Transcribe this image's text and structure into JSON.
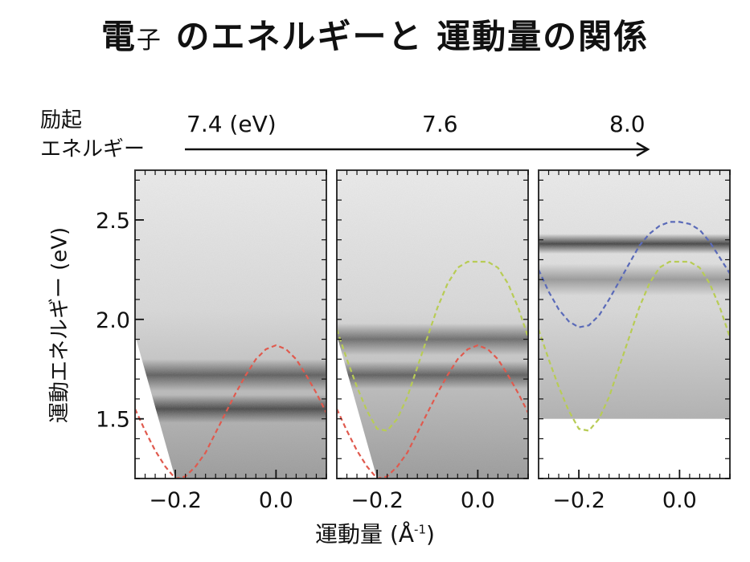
{
  "title": {
    "main": "電",
    "small": "子",
    "rest": " のエネルギーと 運動量の関係"
  },
  "excitation": {
    "label_line1": "励起",
    "label_line2": "エネルギー",
    "values": [
      "7.4 (eV)",
      "7.6",
      "8.0"
    ]
  },
  "ylabel": "運動エネルギー (eV)",
  "xlabel": {
    "text": "運動量 (Å",
    "sup": "-1",
    "close": ")"
  },
  "colors": {
    "red": "#e05a4e",
    "green": "#b8cc55",
    "blue": "#5a6ab8",
    "frame": "#333333"
  },
  "chart_data": [
    {
      "type": "heatmap",
      "panel": "7.4 (eV)",
      "xlim": [
        -0.28,
        0.1
      ],
      "ylim": [
        1.2,
        2.75
      ],
      "xticks": [
        -0.2,
        0.0
      ],
      "xtick_labels": [
        "-0.2",
        "0.0"
      ],
      "yticks": [
        1.5,
        2.0,
        2.5
      ],
      "ytick_labels": [
        "1.5",
        "2.0",
        "2.5"
      ],
      "bands": [
        {
          "energy": 1.72,
          "intensity": 0.6,
          "width": 0.08
        },
        {
          "energy": 1.55,
          "intensity": 0.7,
          "width": 0.07
        }
      ],
      "series": [
        {
          "color": "red",
          "x": [
            -0.28,
            -0.26,
            -0.24,
            -0.22,
            -0.2,
            -0.18,
            -0.16,
            -0.14,
            -0.12,
            -0.1,
            -0.08,
            -0.06,
            -0.04,
            -0.02,
            0.0,
            0.02,
            0.04,
            0.06,
            0.08,
            0.1
          ],
          "y": [
            1.55,
            1.44,
            1.34,
            1.26,
            1.2,
            1.21,
            1.26,
            1.33,
            1.43,
            1.53,
            1.63,
            1.72,
            1.8,
            1.85,
            1.87,
            1.85,
            1.8,
            1.72,
            1.63,
            1.53
          ]
        }
      ]
    },
    {
      "type": "heatmap",
      "panel": "7.6",
      "xlim": [
        -0.28,
        0.1
      ],
      "ylim": [
        1.2,
        2.75
      ],
      "xticks": [
        -0.2,
        0.0
      ],
      "xtick_labels": [
        "-0.2",
        "0.0"
      ],
      "bands": [
        {
          "energy": 1.9,
          "intensity": 0.55,
          "width": 0.08
        },
        {
          "energy": 1.72,
          "intensity": 0.6,
          "width": 0.07
        }
      ],
      "series": [
        {
          "color": "green",
          "x": [
            -0.28,
            -0.26,
            -0.24,
            -0.22,
            -0.2,
            -0.18,
            -0.16,
            -0.14,
            -0.12,
            -0.1,
            -0.08,
            -0.06,
            -0.04,
            -0.02,
            0.0,
            0.02,
            0.04,
            0.06,
            0.08,
            0.1
          ],
          "y": [
            1.95,
            1.8,
            1.66,
            1.54,
            1.45,
            1.44,
            1.5,
            1.61,
            1.76,
            1.91,
            2.06,
            2.18,
            2.26,
            2.29,
            2.29,
            2.29,
            2.26,
            2.18,
            2.06,
            1.91
          ]
        },
        {
          "color": "red",
          "x": [
            -0.28,
            -0.26,
            -0.24,
            -0.22,
            -0.2,
            -0.18,
            -0.16,
            -0.14,
            -0.12,
            -0.1,
            -0.08,
            -0.06,
            -0.04,
            -0.02,
            0.0,
            0.02,
            0.04,
            0.06,
            0.08,
            0.1
          ],
          "y": [
            1.55,
            1.44,
            1.34,
            1.26,
            1.2,
            1.21,
            1.26,
            1.33,
            1.43,
            1.53,
            1.63,
            1.72,
            1.8,
            1.85,
            1.87,
            1.85,
            1.8,
            1.72,
            1.63,
            1.53
          ]
        }
      ]
    },
    {
      "type": "heatmap",
      "panel": "8.0",
      "xlim": [
        -0.28,
        0.1
      ],
      "ylim": [
        1.2,
        2.75
      ],
      "xticks": [
        -0.2,
        0.0
      ],
      "xtick_labels": [
        "-0.2",
        "0.0"
      ],
      "data_ylim": [
        1.5,
        2.75
      ],
      "bands": [
        {
          "energy": 2.38,
          "intensity": 0.8,
          "width": 0.05
        },
        {
          "energy": 2.2,
          "intensity": 0.35,
          "width": 0.08
        }
      ],
      "series": [
        {
          "color": "blue",
          "x": [
            -0.28,
            -0.26,
            -0.24,
            -0.22,
            -0.2,
            -0.18,
            -0.16,
            -0.14,
            -0.12,
            -0.1,
            -0.08,
            -0.06,
            -0.04,
            -0.02,
            0.0,
            0.02,
            0.04,
            0.06,
            0.08,
            0.1
          ],
          "y": [
            2.25,
            2.14,
            2.05,
            1.99,
            1.96,
            1.97,
            2.02,
            2.1,
            2.19,
            2.28,
            2.37,
            2.43,
            2.47,
            2.49,
            2.49,
            2.48,
            2.45,
            2.39,
            2.31,
            2.23
          ]
        },
        {
          "color": "green",
          "x": [
            -0.28,
            -0.26,
            -0.24,
            -0.22,
            -0.2,
            -0.18,
            -0.16,
            -0.14,
            -0.12,
            -0.1,
            -0.08,
            -0.06,
            -0.04,
            -0.02,
            0.0,
            0.02,
            0.04,
            0.06,
            0.08,
            0.1
          ],
          "y": [
            1.95,
            1.8,
            1.66,
            1.54,
            1.45,
            1.44,
            1.5,
            1.61,
            1.76,
            1.91,
            2.06,
            2.18,
            2.26,
            2.29,
            2.29,
            2.29,
            2.26,
            2.18,
            2.06,
            1.91
          ]
        }
      ]
    }
  ]
}
